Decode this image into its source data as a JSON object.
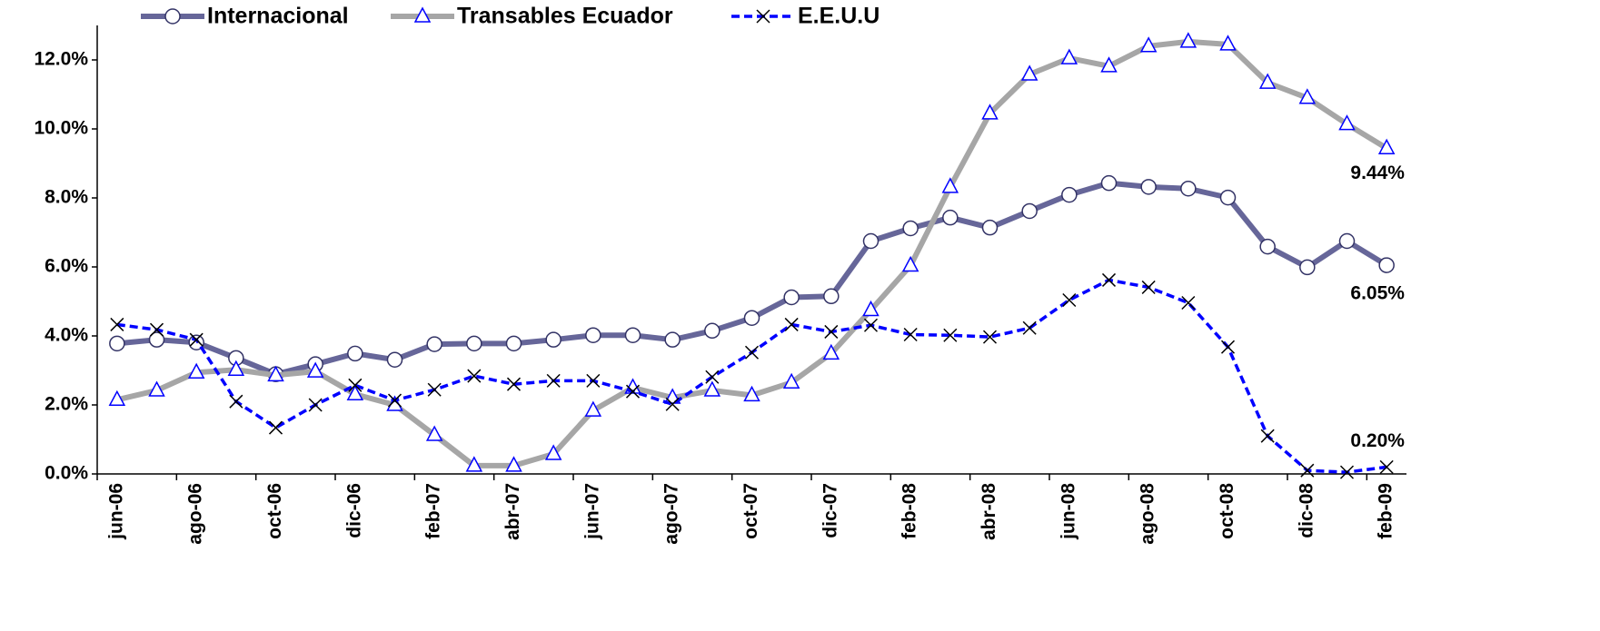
{
  "chart_data": {
    "type": "line",
    "categories": [
      "jun-06",
      null,
      "ago-06",
      null,
      "oct-06",
      null,
      "dic-06",
      null,
      "feb-07",
      null,
      "abr-07",
      null,
      "jun-07",
      null,
      "ago-07",
      null,
      "oct-07",
      null,
      "dic-07",
      null,
      "feb-08",
      null,
      "abr-08",
      null,
      "jun-08",
      null,
      "ago-08",
      null,
      "oct-08",
      null,
      "dic-08",
      null,
      "feb-09"
    ],
    "series": [
      {
        "name": "Internacional",
        "color": "#666699",
        "values": [
          3.78,
          3.89,
          3.81,
          3.36,
          2.89,
          3.18,
          3.49,
          3.31,
          3.76,
          3.78,
          3.78,
          3.89,
          4.02,
          4.02,
          3.89,
          4.15,
          4.52,
          5.12,
          5.15,
          6.75,
          7.12,
          7.43,
          7.14,
          7.62,
          8.09,
          8.43,
          8.32,
          8.27,
          8.01,
          6.59,
          5.99,
          6.75,
          6.05
        ],
        "value_labels": [
          null,
          null,
          null,
          null,
          null,
          null,
          null,
          null,
          null,
          null,
          null,
          null,
          null,
          null,
          null,
          null,
          null,
          null,
          null,
          null,
          null,
          null,
          null,
          null,
          null,
          null,
          null,
          null,
          null,
          null,
          null,
          null,
          "6.05%"
        ]
      },
      {
        "name": "Transables Ecuador",
        "color": "#a6a6a6",
        "values": [
          2.15,
          2.42,
          2.94,
          3.02,
          2.86,
          2.97,
          2.31,
          2.0,
          1.13,
          0.24,
          0.24,
          0.58,
          1.84,
          2.5,
          2.21,
          2.42,
          2.28,
          2.65,
          3.49,
          4.75,
          6.04,
          8.32,
          10.45,
          11.58,
          12.05,
          11.82,
          12.4,
          12.53,
          12.45,
          11.34,
          10.9,
          10.14,
          9.44
        ],
        "value_labels": [
          null,
          null,
          null,
          null,
          null,
          null,
          null,
          null,
          null,
          null,
          null,
          null,
          null,
          null,
          null,
          null,
          null,
          null,
          null,
          null,
          null,
          null,
          null,
          null,
          null,
          null,
          null,
          null,
          null,
          null,
          null,
          null,
          "9.44%"
        ]
      },
      {
        "name": "E.E.U.U",
        "color": "#0000ff",
        "values": [
          4.33,
          4.18,
          3.89,
          2.1,
          1.34,
          2.0,
          2.57,
          2.13,
          2.44,
          2.84,
          2.6,
          2.7,
          2.7,
          2.39,
          2.02,
          2.81,
          3.52,
          4.33,
          4.12,
          4.31,
          4.04,
          4.02,
          3.97,
          4.23,
          5.04,
          5.62,
          5.41,
          4.96,
          3.68,
          1.1,
          0.1,
          0.05,
          0.2
        ],
        "value_labels": [
          null,
          null,
          null,
          null,
          null,
          null,
          null,
          null,
          null,
          null,
          null,
          null,
          null,
          null,
          null,
          null,
          null,
          null,
          null,
          null,
          null,
          null,
          null,
          null,
          null,
          null,
          null,
          null,
          null,
          null,
          null,
          null,
          "0.20%"
        ]
      }
    ],
    "ylim": [
      0,
      13
    ],
    "yticks": [
      {
        "value": 0,
        "label": "0.0%"
      },
      {
        "value": 2,
        "label": "2.0%"
      },
      {
        "value": 4,
        "label": "4.0%"
      },
      {
        "value": 6,
        "label": "6.0%"
      },
      {
        "value": 8,
        "label": "8.0%"
      },
      {
        "value": 10,
        "label": "10.0%"
      },
      {
        "value": 12,
        "label": "12.0%"
      }
    ],
    "grid": false
  }
}
